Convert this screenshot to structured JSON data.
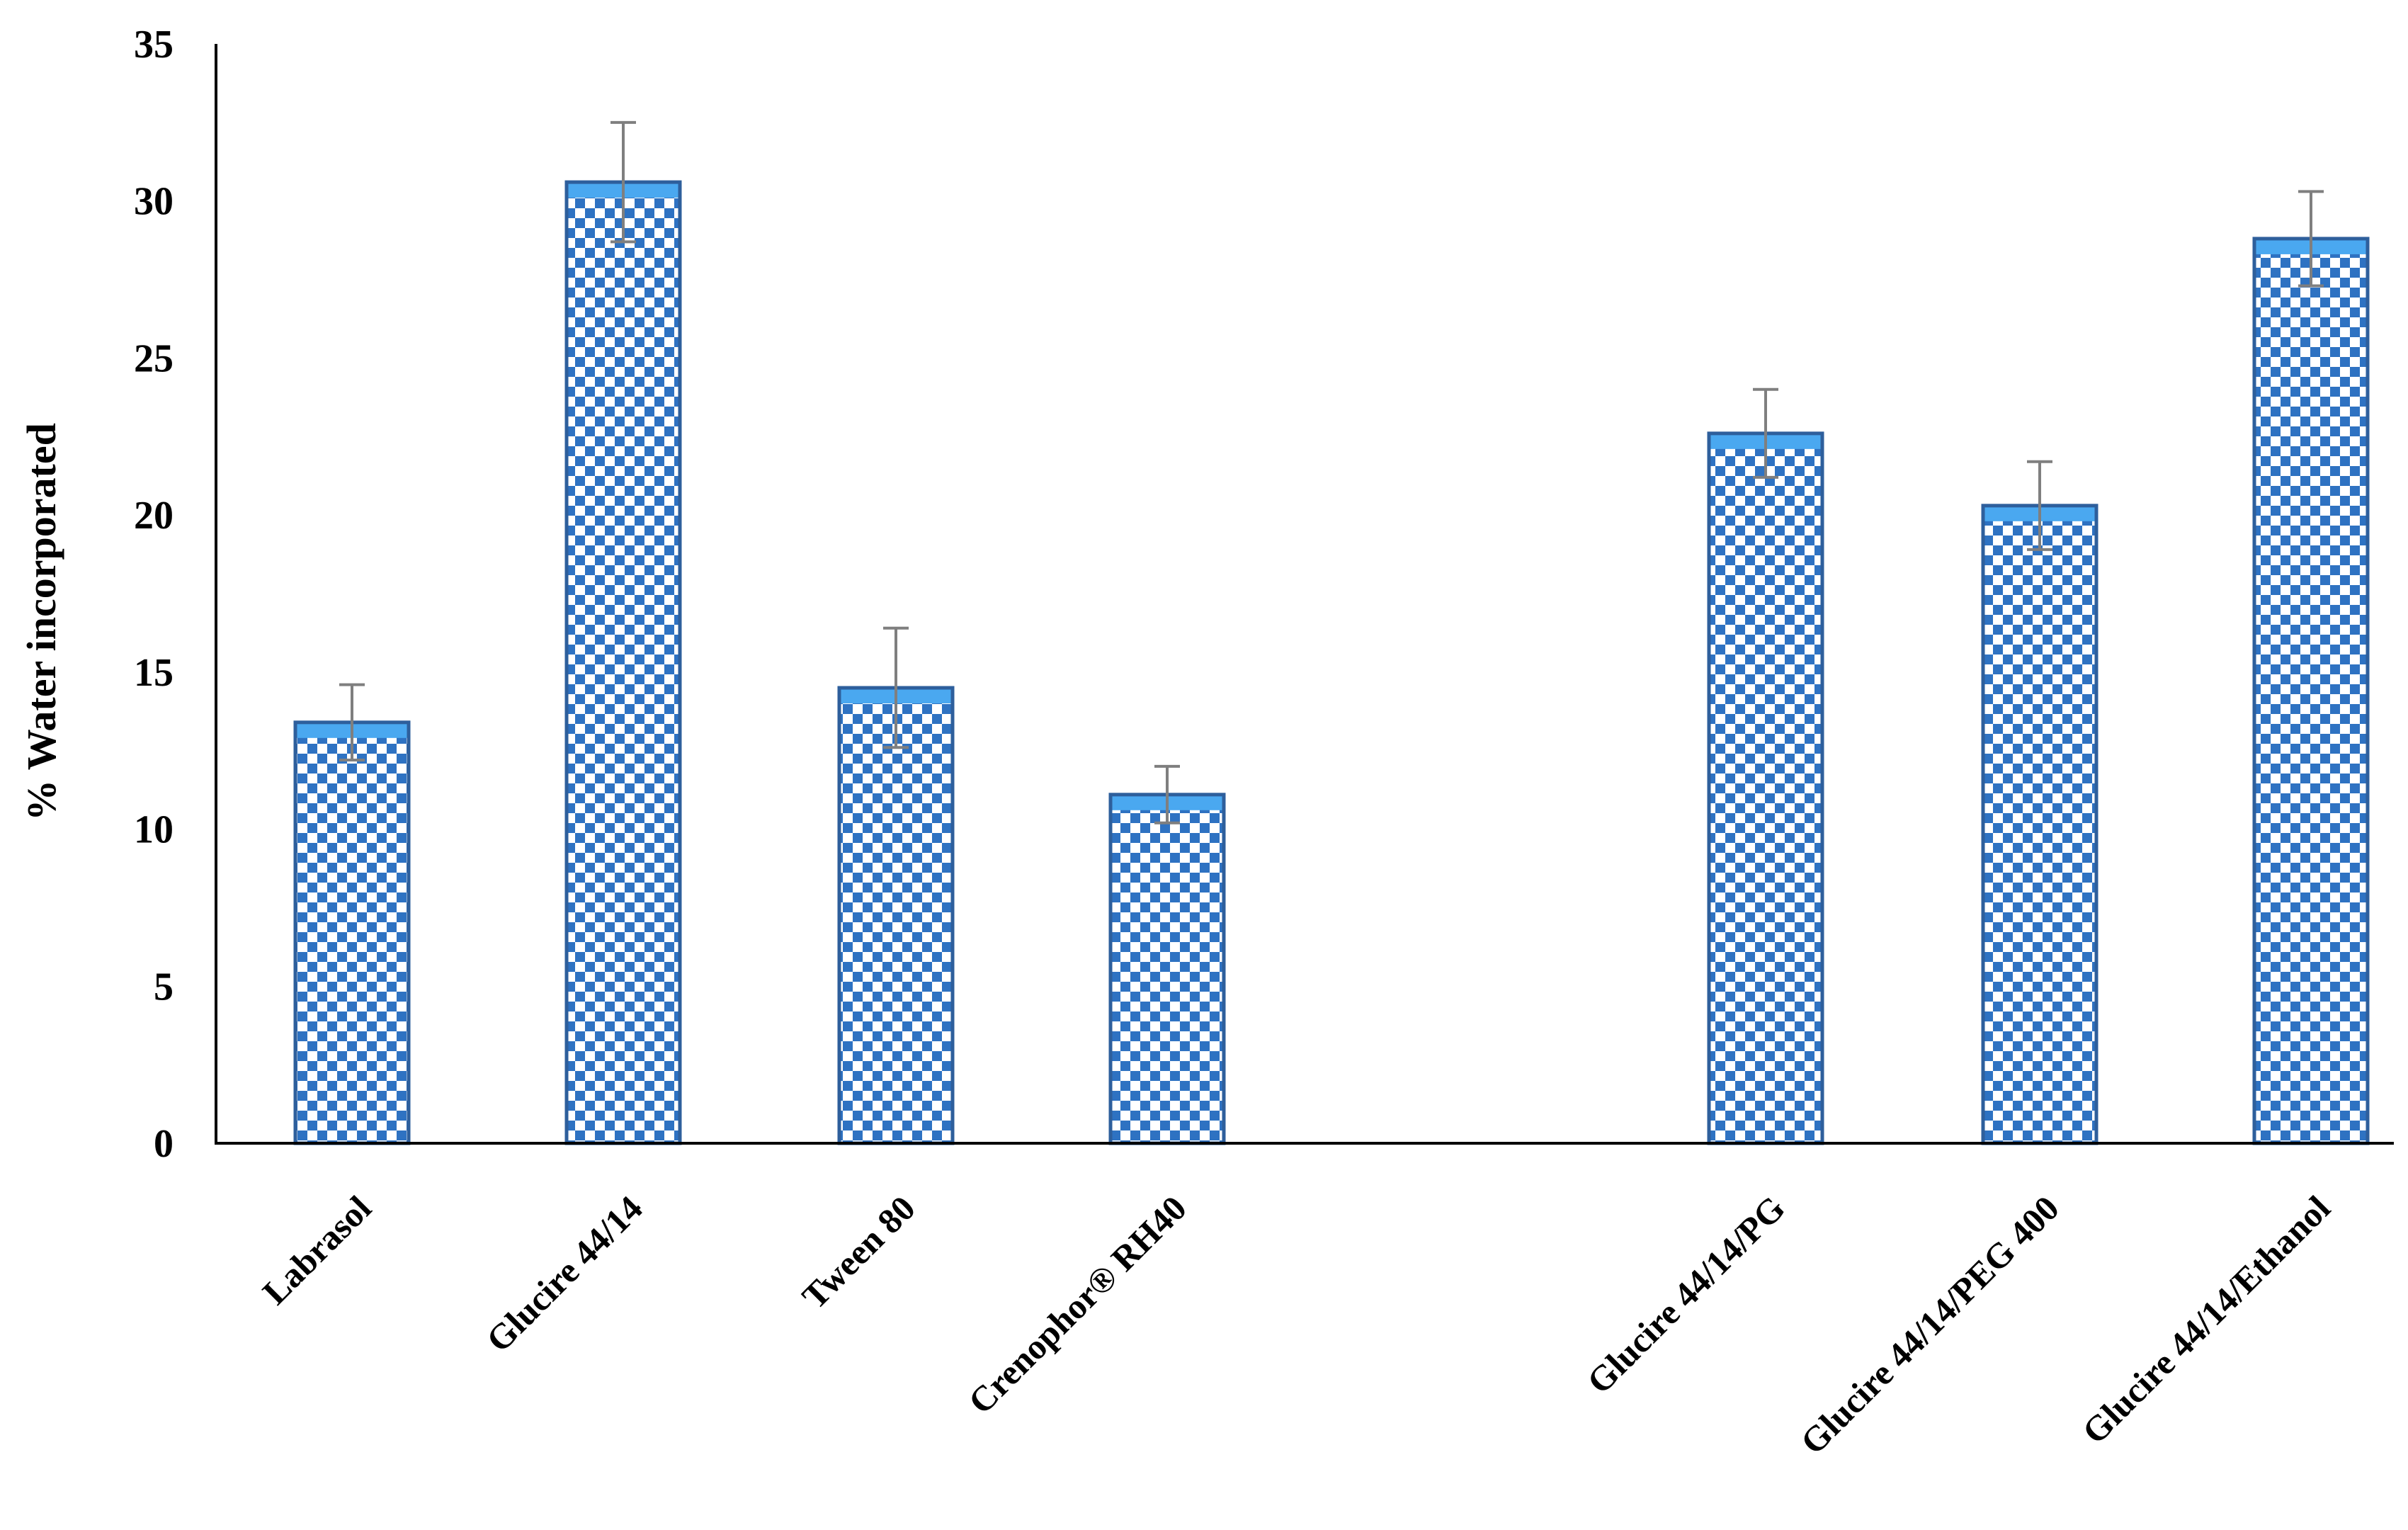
{
  "chart_data": {
    "type": "bar",
    "title": "",
    "xlabel": "",
    "ylabel": "% Water incorporated",
    "ylim": [
      0,
      35
    ],
    "yticks": [
      0,
      5,
      10,
      15,
      20,
      25,
      30,
      35
    ],
    "grid": false,
    "legend": "none",
    "categories": [
      "Labrasol",
      "Glucire 44/14",
      "Tween 80",
      "Crenophor® RH40",
      "Glucire 44/14/PG",
      "Glucire 44/14/PEG 400",
      "Glucire 44/14/Ethanol"
    ],
    "gap_after_index": 3,
    "values": [
      13.4,
      30.6,
      14.5,
      11.1,
      22.6,
      20.3,
      28.8
    ],
    "errors": [
      1.2,
      1.9,
      1.9,
      0.9,
      1.4,
      1.4,
      1.5
    ],
    "colors": {
      "checker_dark": "#2e72c2",
      "checker_light": "#ffffff",
      "bar_top": "#4aa8f0",
      "bar_edge": "#2e5f9c",
      "error_bar": "#7f7f7f",
      "axis": "#000000"
    }
  }
}
